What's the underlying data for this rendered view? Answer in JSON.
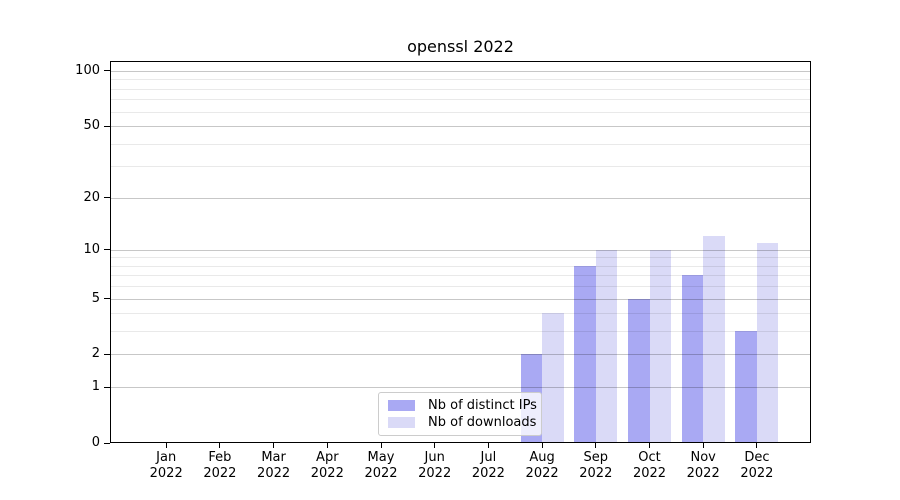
{
  "figure": {
    "title": "openssl 2022"
  },
  "chart_data": {
    "type": "bar",
    "title": "openssl 2022",
    "categories": [
      "Jan",
      "Feb",
      "Mar",
      "Apr",
      "May",
      "Jun",
      "Jul",
      "Aug",
      "Sep",
      "Oct",
      "Nov",
      "Dec"
    ],
    "year": "2022",
    "series": [
      {
        "name": "Nb of distinct IPs",
        "color": "#a9a9f3",
        "values": [
          0,
          0,
          0,
          0,
          0,
          0,
          0,
          2,
          8,
          5,
          7,
          3
        ]
      },
      {
        "name": "Nb of downloads",
        "color": "#dadaf7",
        "values": [
          0,
          0,
          0,
          0,
          0,
          0,
          0,
          4,
          10,
          10,
          12,
          11
        ]
      }
    ],
    "yscale": "log1p",
    "ylim": [
      0,
      114
    ],
    "y_major_ticks": [
      0,
      1,
      2,
      5,
      10,
      20,
      50,
      100
    ],
    "y_minor_ticks": [
      3,
      4,
      6,
      7,
      8,
      9,
      30,
      40,
      60,
      70,
      80,
      90
    ],
    "grid": true,
    "grid_above_bars": true,
    "legend_position": "lower center",
    "colors": {
      "major_grid": "rgba(0,0,0,0.22)",
      "minor_grid": "rgba(0,0,0,0.085)",
      "spine": "#000000",
      "text": "#000000",
      "legend_border": "#cccccc",
      "legend_background": "rgba(255,255,255,0.8)"
    }
  }
}
